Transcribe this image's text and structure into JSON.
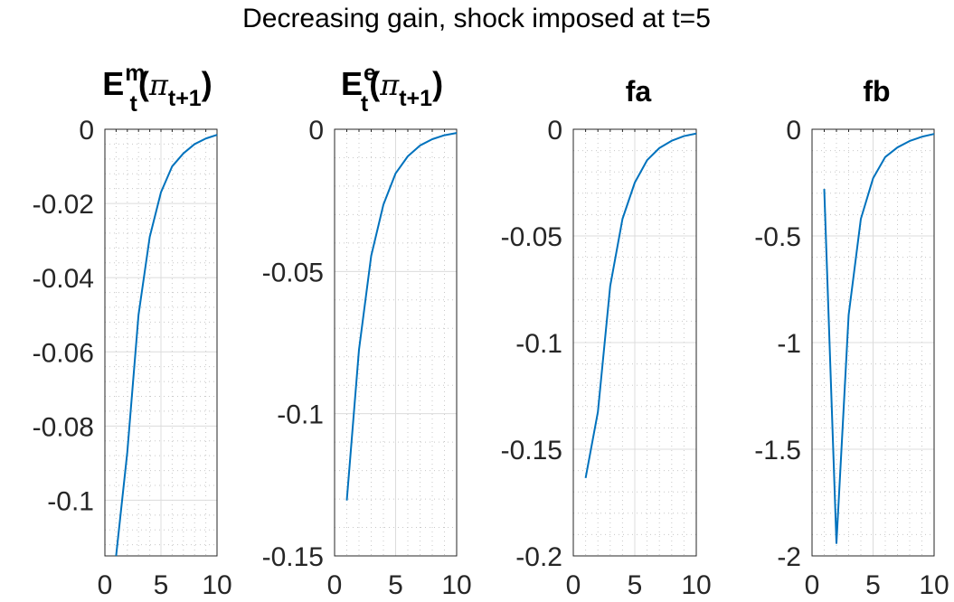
{
  "figure": {
    "title": "Decreasing gain, shock imposed at t=5",
    "line_color": "#0072BD"
  },
  "chart_data": [
    {
      "type": "line",
      "title": {
        "base": "E",
        "sup": "m",
        "sub": "t",
        "open": "(",
        "symbol": "π",
        "symbol_sub": "t+1",
        "close": ")"
      },
      "xlim": [
        0,
        10
      ],
      "ylim": [
        -0.115,
        0
      ],
      "xticks": [
        0,
        5,
        10
      ],
      "xtick_labels": [
        "0",
        "5",
        "10"
      ],
      "yticks": [
        0,
        -0.02,
        -0.04,
        -0.06,
        -0.08,
        -0.1
      ],
      "ytick_labels": [
        "0",
        "-0.02",
        "-0.04",
        "-0.06",
        "-0.08",
        "-0.1"
      ],
      "grid": true,
      "minor_grid": true,
      "series": [
        {
          "x": [
            1,
            2,
            3,
            4,
            5,
            6,
            7,
            8,
            9,
            10
          ],
          "y": [
            -0.115,
            -0.087,
            -0.05,
            -0.029,
            -0.017,
            -0.01,
            -0.0065,
            -0.004,
            -0.0025,
            -0.0015
          ]
        }
      ]
    },
    {
      "type": "line",
      "title": {
        "base": "E",
        "sup": "e",
        "sub": "t",
        "open": "(",
        "symbol": "π",
        "symbol_sub": "t+1",
        "close": ")"
      },
      "xlim": [
        0,
        10
      ],
      "ylim": [
        -0.15,
        0
      ],
      "xticks": [
        0,
        5,
        10
      ],
      "xtick_labels": [
        "0",
        "5",
        "10"
      ],
      "yticks": [
        0,
        -0.05,
        -0.1,
        -0.15
      ],
      "ytick_labels": [
        "0",
        "-0.05",
        "-0.1",
        "-0.15"
      ],
      "grid": true,
      "minor_grid": true,
      "series": [
        {
          "x": [
            1,
            2,
            3,
            4,
            5,
            6,
            7,
            8,
            9,
            10
          ],
          "y": [
            -0.1305,
            -0.0775,
            -0.0445,
            -0.0265,
            -0.0155,
            -0.0095,
            -0.0057,
            -0.0035,
            -0.0021,
            -0.0013
          ]
        }
      ]
    },
    {
      "type": "line",
      "title": {
        "text": "fa"
      },
      "xlim": [
        0,
        10
      ],
      "ylim": [
        -0.2,
        0
      ],
      "xticks": [
        0,
        5,
        10
      ],
      "xtick_labels": [
        "0",
        "5",
        "10"
      ],
      "yticks": [
        0,
        -0.05,
        -0.1,
        -0.15,
        -0.2
      ],
      "ytick_labels": [
        "0",
        "-0.05",
        "-0.1",
        "-0.15",
        "-0.2"
      ],
      "grid": true,
      "minor_grid": true,
      "series": [
        {
          "x": [
            1,
            2,
            3,
            4,
            5,
            6,
            7,
            8,
            9,
            10
          ],
          "y": [
            -0.1635,
            -0.1325,
            -0.0735,
            -0.042,
            -0.025,
            -0.0145,
            -0.0088,
            -0.0054,
            -0.0032,
            -0.002
          ]
        }
      ]
    },
    {
      "type": "line",
      "title": {
        "text": "fb"
      },
      "xlim": [
        0,
        10
      ],
      "ylim": [
        -2,
        0
      ],
      "xticks": [
        0,
        5,
        10
      ],
      "xtick_labels": [
        "0",
        "5",
        "10"
      ],
      "yticks": [
        0,
        -0.5,
        -1,
        -1.5,
        -2
      ],
      "ytick_labels": [
        "0",
        "-0.5",
        "-1",
        "-1.5",
        "-2"
      ],
      "grid": true,
      "minor_grid": true,
      "series": [
        {
          "x": [
            1,
            2,
            3,
            4,
            5,
            6,
            7,
            8,
            9,
            10
          ],
          "y": [
            -0.28,
            -1.94,
            -0.87,
            -0.42,
            -0.23,
            -0.13,
            -0.085,
            -0.055,
            -0.035,
            -0.022
          ]
        }
      ]
    }
  ]
}
